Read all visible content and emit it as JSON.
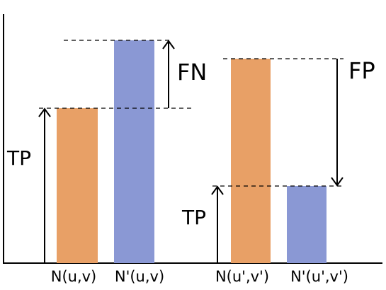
{
  "left_group": {
    "tp": "TP",
    "fn": "FN",
    "categories": [
      "N(u,v)",
      "N'(u,v)"
    ]
  },
  "right_group": {
    "tp": "TP",
    "fp": "FP",
    "categories": [
      "N(u',v')",
      "N'(u',v')"
    ]
  }
}
